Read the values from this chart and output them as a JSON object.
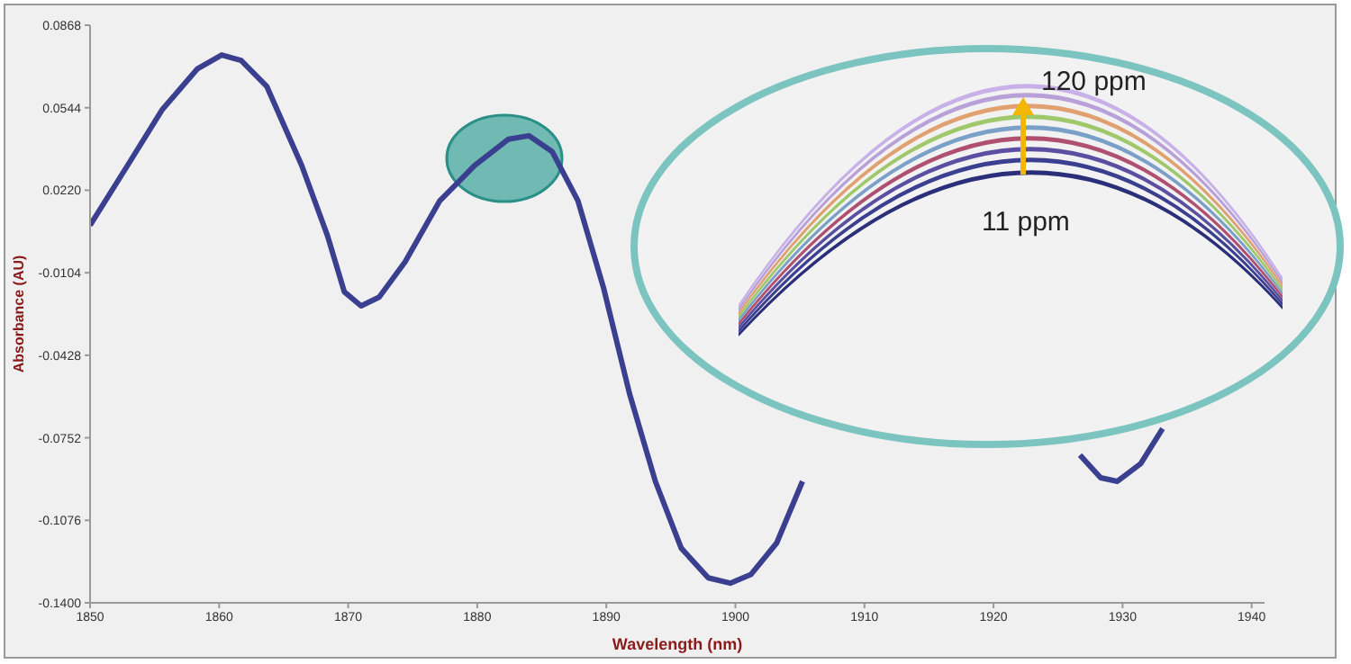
{
  "chart_data": {
    "type": "line",
    "xlabel": "Wavelength (nm)",
    "ylabel": "Absorbance (AU)",
    "x": [
      1850,
      1852.9,
      1855.6,
      1858.3,
      1860.2,
      1861.7,
      1863.7,
      1866.4,
      1868.4,
      1869.7,
      1871.0,
      1872.4,
      1874.4,
      1877.1,
      1879.8,
      1882.4,
      1884.0,
      1885.8,
      1887.8,
      1889.8,
      1891.8,
      1893.8,
      1895.8,
      1897.9,
      1899.6,
      1901.2,
      1903.2,
      1905.2,
      1915,
      1926.7,
      1928.3,
      1929.6,
      1931.4,
      1933.1
    ],
    "series": [
      {
        "color": "#3b3f8f",
        "values": [
          0.0082,
          0.0317,
          0.0537,
          0.0696,
          0.0751,
          0.073,
          0.0627,
          0.0317,
          0.0041,
          -0.0179,
          -0.0234,
          -0.02,
          -0.0062,
          0.0179,
          0.0317,
          0.042,
          0.0434,
          0.0372,
          0.0179,
          -0.0166,
          -0.0579,
          -0.0923,
          -0.1185,
          -0.1302,
          -0.1323,
          -0.1289,
          -0.1165,
          -0.0923,
          null,
          -0.082,
          -0.0909,
          -0.0923,
          -0.0854,
          -0.0716
        ]
      }
    ],
    "xlim": [
      1850,
      1941
    ],
    "xticks": [
      1850,
      1860,
      1870,
      1880,
      1890,
      1900,
      1910,
      1920,
      1930,
      1940
    ],
    "ylim": [
      -0.14,
      0.0868
    ],
    "yticks": [
      0.0868,
      0.0544,
      {
        "value": 0.022,
        "label": "0.0220"
      },
      -0.0104,
      -0.0428,
      -0.0752,
      -0.1076,
      {
        "value": -0.14,
        "label": "-0.1400"
      }
    ],
    "grid": false,
    "legend": false,
    "marker": "none",
    "line_style": "solid",
    "annotations": [
      "120 ppm",
      "11 ppm"
    ]
  }
}
